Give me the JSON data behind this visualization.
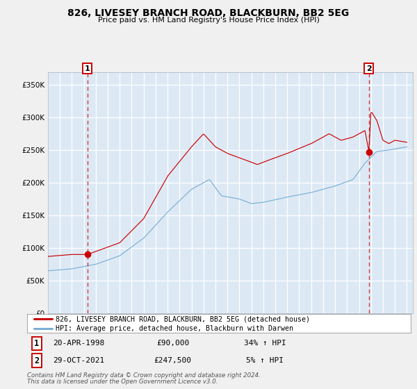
{
  "title": "826, LIVESEY BRANCH ROAD, BLACKBURN, BB2 5EG",
  "subtitle": "Price paid vs. HM Land Registry's House Price Index (HPI)",
  "background_color": "#f0f0f0",
  "plot_bg_color": "#dce9f5",
  "grid_color": "#ffffff",
  "red_line_color": "#cc0000",
  "blue_line_color": "#7bafd4",
  "sale1_date_num": 1998.3,
  "sale1_value": 90000,
  "sale1_label": "20-APR-1998",
  "sale1_price": "£90,000",
  "sale1_hpi": "34% ↑ HPI",
  "sale2_date_num": 2021.83,
  "sale2_value": 247500,
  "sale2_label": "29-OCT-2021",
  "sale2_price": "£247,500",
  "sale2_hpi": "5% ↑ HPI",
  "legend_line1": "826, LIVESEY BRANCH ROAD, BLACKBURN, BB2 5EG (detached house)",
  "legend_line2": "HPI: Average price, detached house, Blackburn with Darwen",
  "footer1": "Contains HM Land Registry data © Crown copyright and database right 2024.",
  "footer2": "This data is licensed under the Open Government Licence v3.0.",
  "xmin": 1995.0,
  "xmax": 2025.5,
  "ymin": 0,
  "ymax": 370000
}
